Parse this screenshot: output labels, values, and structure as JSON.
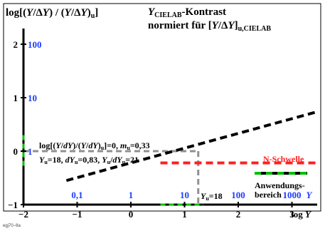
{
  "chart_data": {
    "type": "line",
    "x_axis": {
      "label": "log Y",
      "range": [
        -2,
        3.5
      ],
      "ticks": [
        -2,
        -1,
        0,
        1,
        2,
        3
      ],
      "tick_labels": [
        "−2",
        "−1",
        "0",
        "1",
        "2",
        "3"
      ],
      "linear_labels": [
        "0,1",
        "1",
        "10",
        "100",
        "1000"
      ],
      "linear_unit": "Y"
    },
    "y_axis": {
      "label": "log[(Y/ΔY) / (Y/ΔY)u]",
      "range": [
        -1,
        2.5
      ],
      "ticks": [
        -1,
        0,
        1,
        2
      ],
      "tick_labels": [
        "−1",
        "0",
        "1",
        "2"
      ],
      "linear_labels": [
        "1",
        "10",
        "100"
      ]
    },
    "title": "YCIELAB-Kontrast",
    "subtitle": "normiert für [Y/ΔY]u,CIELAB",
    "series": [
      {
        "name": "CIELAB-Kontrast",
        "style": "dashed-black",
        "x": [
          -1.2,
          3.5
        ],
        "y": [
          -0.55,
          0.745
        ]
      },
      {
        "name": "N-Schwelle",
        "style": "dashed-red",
        "x": [
          0.55,
          3.5
        ],
        "y": [
          -0.22,
          -0.22
        ]
      }
    ],
    "reference": {
      "x": 1.255,
      "y": 0,
      "x_highlight": [
        0.55,
        1.35
      ],
      "y_highlight": [
        -0.28,
        0.3
      ]
    },
    "annotations": {
      "formula_line1": "log[(Y/dY)/(Y/dY)u]=0, mu=0,33",
      "formula_line2": "Yu=18, dYu=0,83, Yu/dYu=21",
      "yu_label": "Yu=18",
      "n_schwelle": "N-Schwelle",
      "legend_line1": "Anwendungs-",
      "legend_line2": "bereich",
      "footer": "egj70−8a"
    },
    "colors": {
      "blue": "#1e3cff",
      "green": "#00c000",
      "red": "#ff2020",
      "gray": "#909090",
      "black": "#000000"
    }
  }
}
